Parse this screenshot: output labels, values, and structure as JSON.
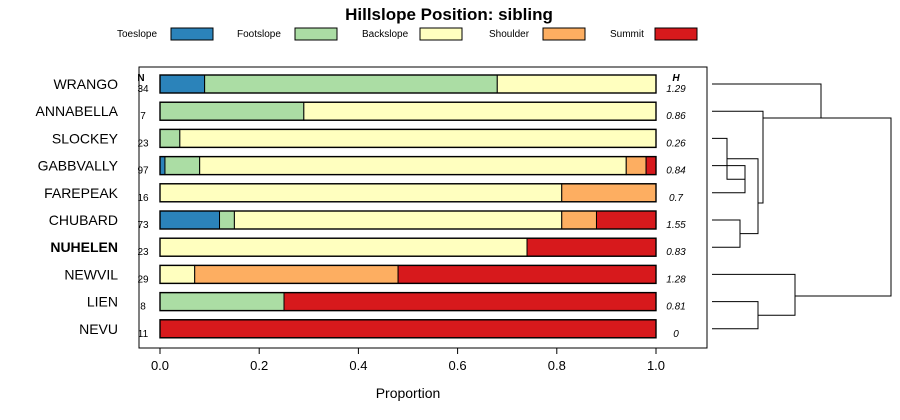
{
  "chart_data": {
    "type": "bar",
    "stacked": true,
    "orientation": "horizontal",
    "title": "Hillslope Position: sibling",
    "xlabel": "Proportion",
    "xlim": [
      0,
      1
    ],
    "xticks": [
      "0.0",
      "0.2",
      "0.4",
      "0.6",
      "0.8",
      "1.0"
    ],
    "legend_position": "top",
    "n_header": "N",
    "h_header": "H",
    "highlight": "NUHELEN",
    "series": [
      {
        "name": "Toeslope",
        "color": "#2B83BA"
      },
      {
        "name": "Footslope",
        "color": "#ABDDA4"
      },
      {
        "name": "Backslope",
        "color": "#FFFFBF"
      },
      {
        "name": "Shoulder",
        "color": "#FDAE61"
      },
      {
        "name": "Summit",
        "color": "#D7191C"
      }
    ],
    "categories": [
      "WRANGO",
      "ANNABELLA",
      "SLOCKEY",
      "GABBVALLY",
      "FAREPEAK",
      "CHUBARD",
      "NUHELEN",
      "NEWVIL",
      "LIEN",
      "NEVU"
    ],
    "n": [
      "34",
      "7",
      "23",
      "97",
      "16",
      "73",
      "23",
      "29",
      "8",
      "11"
    ],
    "h": [
      "1.29",
      "0.86",
      "0.26",
      "0.84",
      "0.7",
      "1.55",
      "0.83",
      "1.28",
      "0.81",
      "0"
    ],
    "values": [
      [
        0.09,
        0.59,
        0.32,
        0.0,
        0.0
      ],
      [
        0.0,
        0.29,
        0.71,
        0.0,
        0.0
      ],
      [
        0.0,
        0.04,
        0.96,
        0.0,
        0.0
      ],
      [
        0.01,
        0.07,
        0.86,
        0.04,
        0.02
      ],
      [
        0.0,
        0.0,
        0.81,
        0.19,
        0.0
      ],
      [
        0.12,
        0.03,
        0.66,
        0.07,
        0.12
      ],
      [
        0.0,
        0.0,
        0.74,
        0.0,
        0.26
      ],
      [
        0.0,
        0.0,
        0.07,
        0.41,
        0.52
      ],
      [
        0.0,
        0.25,
        0.0,
        0.0,
        0.75
      ],
      [
        0.0,
        0.0,
        0.0,
        0.0,
        1.0
      ]
    ]
  }
}
